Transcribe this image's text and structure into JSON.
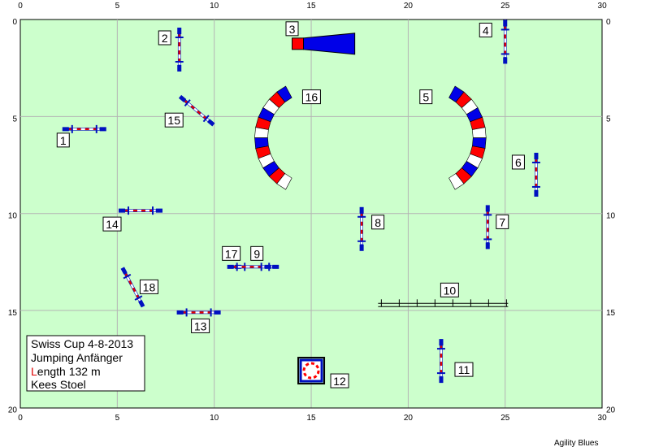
{
  "course": {
    "axis": {
      "x_ticks": [
        "0",
        "5",
        "10",
        "15",
        "20",
        "25",
        "30"
      ],
      "y_ticks": [
        "0",
        "5",
        "10",
        "15",
        "20"
      ]
    },
    "colors": {
      "field": "#ccffcc",
      "grid": "#b4b4b4",
      "pole_red": "#e00000",
      "pole_white": "#ffffff",
      "wing_blue": "#0010c0",
      "tunnel_blue": "#0000e8",
      "tunnel_red": "#ff0000"
    },
    "info": {
      "line1": "Swiss Cup 4-8-2013",
      "line2": "Jumping Anfänger",
      "line3_first": "L",
      "line3_rest": "ength 132 m",
      "line4": "Kees Stoel"
    },
    "credit": "Agility Blues",
    "obstacles": [
      {
        "number": "1",
        "type": "jump",
        "x": 3.3,
        "y": 5.65,
        "angle": 0
      },
      {
        "number": "2",
        "type": "jump",
        "x": 8.2,
        "y": 1.55,
        "angle": 90
      },
      {
        "number": "3",
        "type": "tunnel-straight",
        "x": 14.6,
        "y": 1.25,
        "length": 3.4
      },
      {
        "number": "4",
        "type": "jump",
        "x": 25.0,
        "y": 1.15,
        "angle": 90
      },
      {
        "number": "5",
        "type": "tunnel-curved",
        "x": 21.0,
        "y": 6.1,
        "opens": "right"
      },
      {
        "number": "6",
        "type": "jump",
        "x": 26.6,
        "y": 8.0,
        "angle": 90
      },
      {
        "number": "7",
        "type": "jump",
        "x": 24.1,
        "y": 10.7,
        "angle": 90
      },
      {
        "number": "8",
        "type": "jump",
        "x": 17.6,
        "y": 10.8,
        "angle": 90
      },
      {
        "number": "9",
        "type": "jump",
        "x": 12.2,
        "y": 12.75,
        "angle": 0
      },
      {
        "number": "10",
        "type": "long-jump",
        "x": 21.8,
        "y": 14.55
      },
      {
        "number": "11",
        "type": "jump",
        "x": 21.7,
        "y": 17.6,
        "angle": 90
      },
      {
        "number": "12",
        "type": "tyre",
        "x": 15.0,
        "y": 18.1
      },
      {
        "number": "13",
        "type": "jump",
        "x": 9.2,
        "y": 15.1,
        "angle": 0
      },
      {
        "number": "14",
        "type": "jump",
        "x": 6.2,
        "y": 9.85,
        "angle": 0
      },
      {
        "number": "15",
        "type": "jump",
        "x": 9.1,
        "y": 4.7,
        "angle": 40
      },
      {
        "number": "16",
        "type": "tunnel-curved",
        "x": 15.1,
        "y": 6.1,
        "opens": "left"
      },
      {
        "number": "17",
        "type": "jump",
        "x": 11.8,
        "y": 12.75,
        "angle": 0
      },
      {
        "number": "18",
        "type": "jump",
        "x": 5.8,
        "y": 13.8,
        "angle": 62
      }
    ]
  }
}
